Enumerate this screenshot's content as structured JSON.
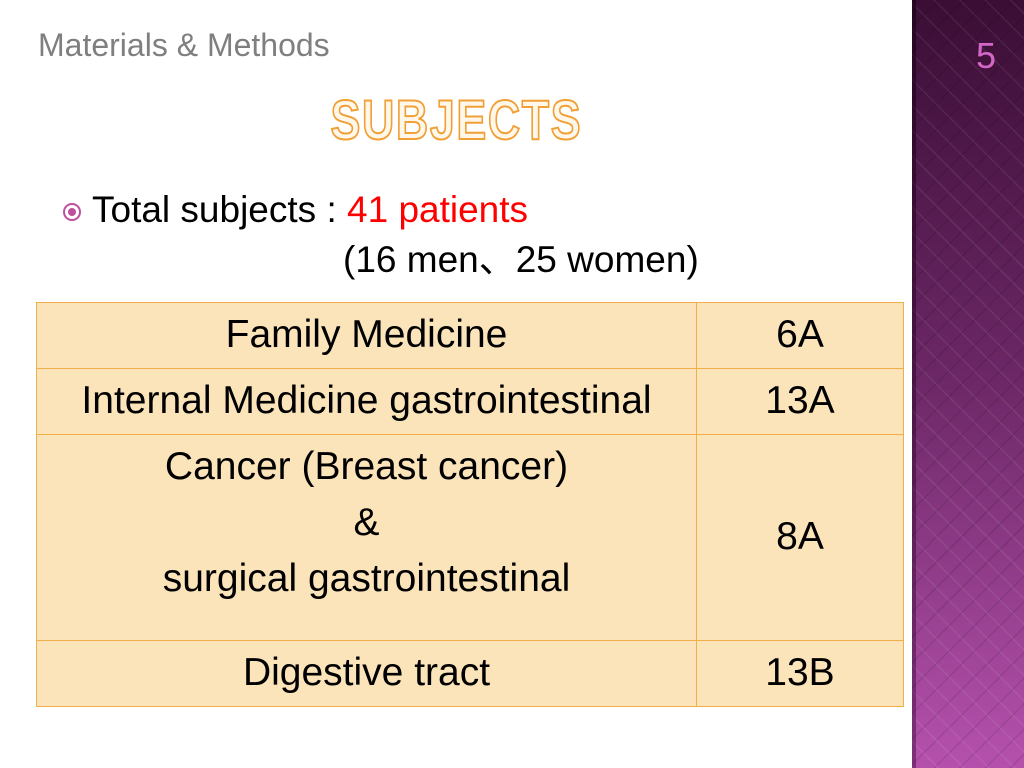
{
  "slide": {
    "header": "Materials & Methods",
    "title": "SUBJECTS",
    "page_number": "5"
  },
  "bullet": {
    "icon": "circle-dot-icon",
    "label": "Total subjects : ",
    "highlight": "41 patients",
    "detail": "(16 men、25 women)"
  },
  "table": {
    "rows": [
      {
        "department": [
          "Family Medicine"
        ],
        "ward": "6A"
      },
      {
        "department": [
          "Internal Medicine gastrointestinal"
        ],
        "ward": "13A"
      },
      {
        "department": [
          "Cancer (Breast cancer)",
          "&",
          "surgical gastrointestinal"
        ],
        "ward": "8A"
      },
      {
        "department": [
          "Digestive tract"
        ],
        "ward": "13B"
      }
    ]
  },
  "colors": {
    "header_gray": "#7f7f7f",
    "title_outline": "#f0a035",
    "title_fill": "#fff7ea",
    "highlight_red": "#ff0000",
    "bullet_accent": "#bf4f9c",
    "table_fill": "#fbe3ba",
    "table_border": "#f2ae48",
    "sidebar_top": "#3a0e35",
    "sidebar_mid": "#6d2867",
    "sidebar_bottom": "#b551ad",
    "page_number": "#d466c8"
  }
}
